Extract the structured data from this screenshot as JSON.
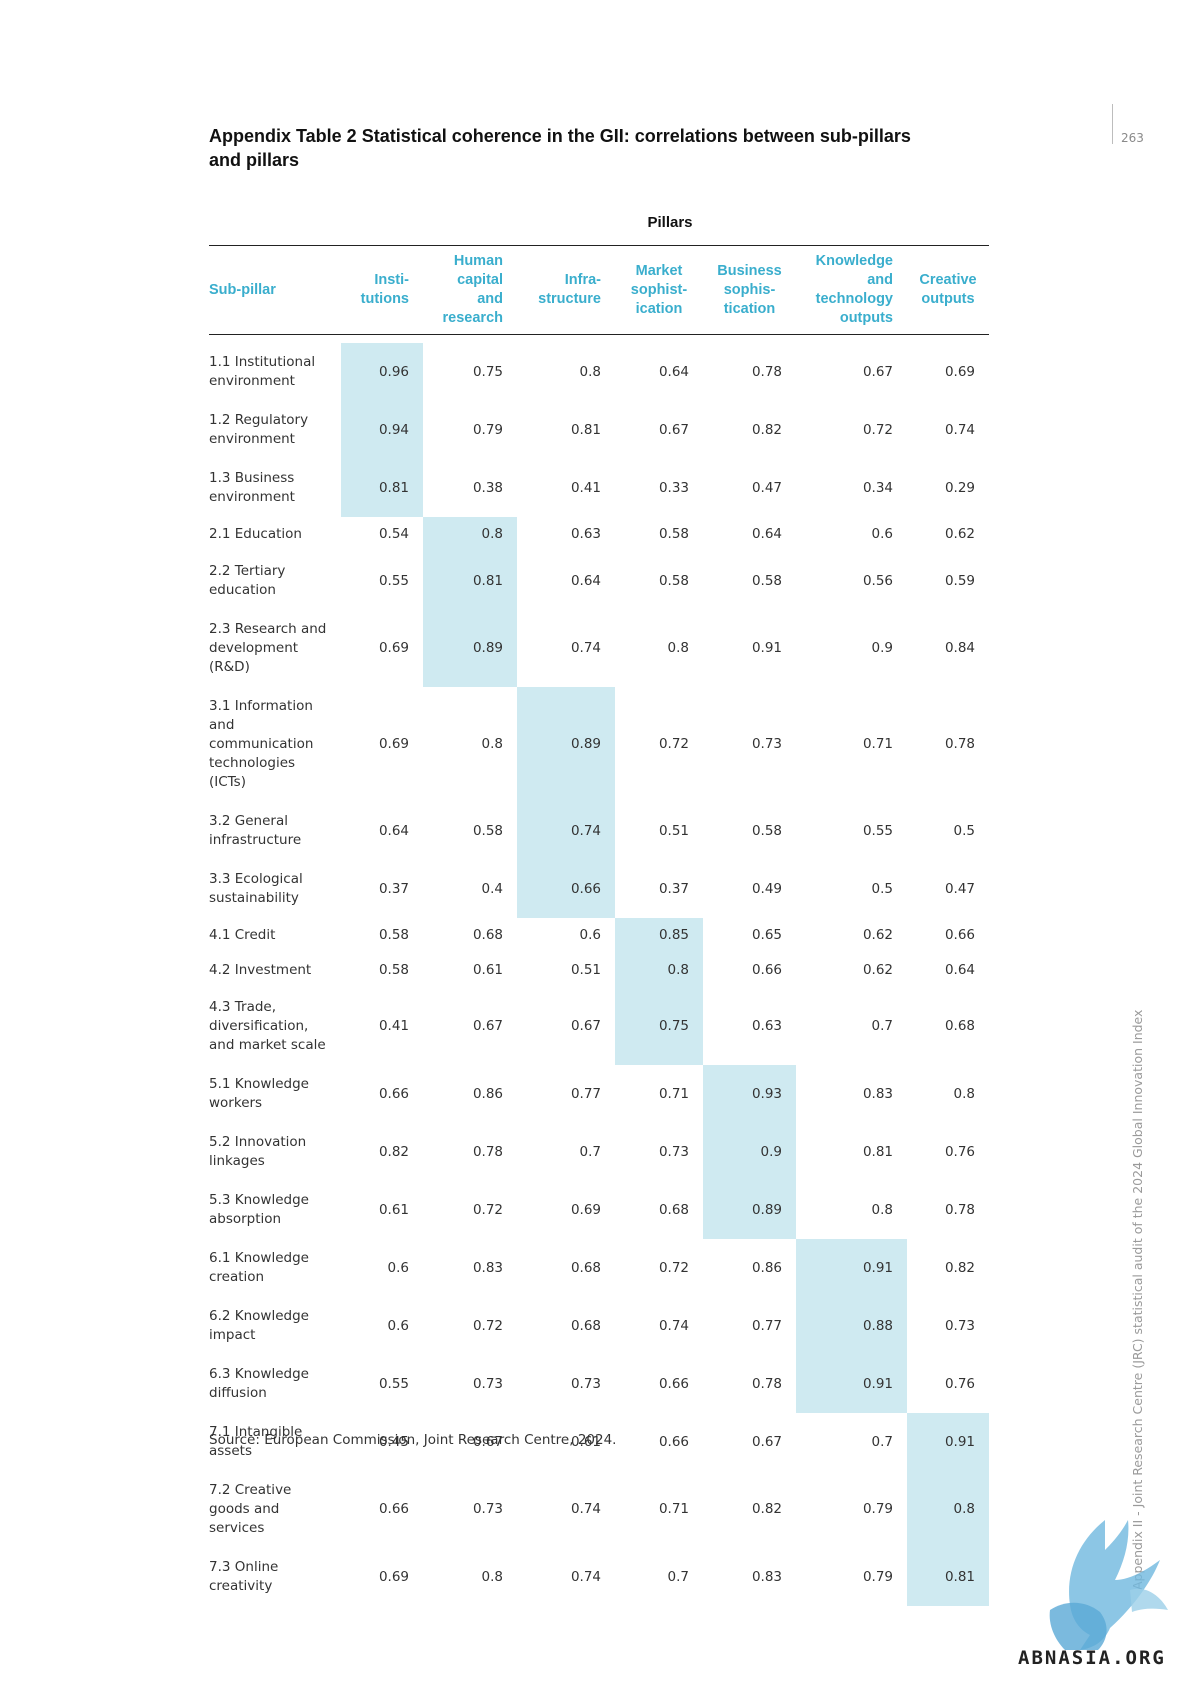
{
  "page_number": "263",
  "title": "Appendix Table 2 Statistical coherence in the GII: correlations between sub-pillars and pillars",
  "pillars_label": "Pillars",
  "columns": {
    "subpillar": "Sub-pillar",
    "c1": [
      "Insti-",
      "tutions"
    ],
    "c2": [
      "Human",
      "capital",
      "and",
      "research"
    ],
    "c3": [
      "Infra-",
      "structure"
    ],
    "c4": [
      "Market",
      "sophist-",
      "ication"
    ],
    "c5": [
      "Business",
      "sophis-",
      "tication"
    ],
    "c6": [
      "Knowledge",
      "and",
      "technology",
      "outputs"
    ],
    "c7": [
      "Creative",
      "outputs"
    ]
  },
  "rows": [
    {
      "label": [
        "1.1 Institutional",
        "environment"
      ],
      "values": [
        "0.96",
        "0.75",
        "0.8",
        "0.64",
        "0.78",
        "0.67",
        "0.69"
      ],
      "hl": 0
    },
    {
      "label": [
        "1.2 Regulatory",
        "environment"
      ],
      "values": [
        "0.94",
        "0.79",
        "0.81",
        "0.67",
        "0.82",
        "0.72",
        "0.74"
      ],
      "hl": 0
    },
    {
      "label": [
        "1.3 Business",
        "environment"
      ],
      "values": [
        "0.81",
        "0.38",
        "0.41",
        "0.33",
        "0.47",
        "0.34",
        "0.29"
      ],
      "hl": 0
    },
    {
      "label": [
        "2.1 Education"
      ],
      "values": [
        "0.54",
        "0.8",
        "0.63",
        "0.58",
        "0.64",
        "0.6",
        "0.62"
      ],
      "hl": 1
    },
    {
      "label": [
        "2.2 Tertiary",
        "education"
      ],
      "values": [
        "0.55",
        "0.81",
        "0.64",
        "0.58",
        "0.58",
        "0.56",
        "0.59"
      ],
      "hl": 1
    },
    {
      "label": [
        "2.3 Research and",
        "development",
        "(R&D)"
      ],
      "values": [
        "0.69",
        "0.89",
        "0.74",
        "0.8",
        "0.91",
        "0.9",
        "0.84"
      ],
      "hl": 1
    },
    {
      "label": [
        "3.1 Information",
        "and",
        "communication",
        "technologies",
        "(ICTs)"
      ],
      "values": [
        "0.69",
        "0.8",
        "0.89",
        "0.72",
        "0.73",
        "0.71",
        "0.78"
      ],
      "hl": 2
    },
    {
      "label": [
        "3.2 General",
        "infrastructure"
      ],
      "values": [
        "0.64",
        "0.58",
        "0.74",
        "0.51",
        "0.58",
        "0.55",
        "0.5"
      ],
      "hl": 2
    },
    {
      "label": [
        "3.3 Ecological",
        "sustainability"
      ],
      "values": [
        "0.37",
        "0.4",
        "0.66",
        "0.37",
        "0.49",
        "0.5",
        "0.47"
      ],
      "hl": 2
    },
    {
      "label": [
        "4.1 Credit"
      ],
      "values": [
        "0.58",
        "0.68",
        "0.6",
        "0.85",
        "0.65",
        "0.62",
        "0.66"
      ],
      "hl": 3
    },
    {
      "label": [
        "4.2 Investment"
      ],
      "values": [
        "0.58",
        "0.61",
        "0.51",
        "0.8",
        "0.66",
        "0.62",
        "0.64"
      ],
      "hl": 3
    },
    {
      "label": [
        "4.3 Trade,",
        "diversification,",
        "and market scale"
      ],
      "values": [
        "0.41",
        "0.67",
        "0.67",
        "0.75",
        "0.63",
        "0.7",
        "0.68"
      ],
      "hl": 3
    },
    {
      "label": [
        "5.1 Knowledge",
        "workers"
      ],
      "values": [
        "0.66",
        "0.86",
        "0.77",
        "0.71",
        "0.93",
        "0.83",
        "0.8"
      ],
      "hl": 4
    },
    {
      "label": [
        "5.2 Innovation",
        "linkages"
      ],
      "values": [
        "0.82",
        "0.78",
        "0.7",
        "0.73",
        "0.9",
        "0.81",
        "0.76"
      ],
      "hl": 4
    },
    {
      "label": [
        "5.3 Knowledge",
        "absorption"
      ],
      "values": [
        "0.61",
        "0.72",
        "0.69",
        "0.68",
        "0.89",
        "0.8",
        "0.78"
      ],
      "hl": 4
    },
    {
      "label": [
        "6.1 Knowledge",
        "creation"
      ],
      "values": [
        "0.6",
        "0.83",
        "0.68",
        "0.72",
        "0.86",
        "0.91",
        "0.82"
      ],
      "hl": 5
    },
    {
      "label": [
        "6.2 Knowledge",
        "impact"
      ],
      "values": [
        "0.6",
        "0.72",
        "0.68",
        "0.74",
        "0.77",
        "0.88",
        "0.73"
      ],
      "hl": 5
    },
    {
      "label": [
        "6.3 Knowledge",
        "diffusion"
      ],
      "values": [
        "0.55",
        "0.73",
        "0.73",
        "0.66",
        "0.78",
        "0.91",
        "0.76"
      ],
      "hl": 5
    },
    {
      "label": [
        "7.1 Intangible",
        "assets"
      ],
      "values": [
        "0.45",
        "0.67",
        "0.61",
        "0.66",
        "0.67",
        "0.7",
        "0.91"
      ],
      "hl": 6
    },
    {
      "label": [
        "7.2 Creative",
        "goods and",
        "services"
      ],
      "values": [
        "0.66",
        "0.73",
        "0.74",
        "0.71",
        "0.82",
        "0.79",
        "0.8"
      ],
      "hl": 6
    },
    {
      "label": [
        "7.3 Online",
        "creativity"
      ],
      "values": [
        "0.69",
        "0.8",
        "0.74",
        "0.7",
        "0.83",
        "0.79",
        "0.81"
      ],
      "hl": 6
    }
  ],
  "source": "Source: European Commission, Joint Research Centre, 2024.",
  "side_text": "Appendix II - Joint Research Centre (JRC) statistical audit of the 2024 Global Innovation Index",
  "watermark": "ABNASIA.ORG",
  "colors": {
    "accent": "#3aaecd",
    "highlight": "#cfeaf1"
  }
}
